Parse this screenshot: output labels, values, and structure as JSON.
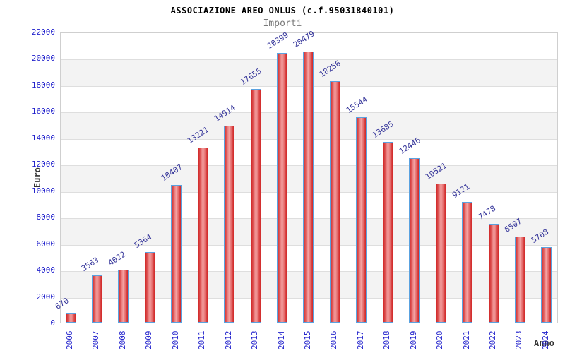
{
  "chart_data": {
    "type": "bar",
    "title": "ASSOCIAZIONE AREO ONLUS (c.f.95031840101)",
    "subtitle": "Importi",
    "xlabel": "Anno",
    "ylabel": "Euro",
    "categories": [
      "2006",
      "2007",
      "2008",
      "2009",
      "2010",
      "2011",
      "2012",
      "2013",
      "2014",
      "2015",
      "2016",
      "2017",
      "2018",
      "2019",
      "2020",
      "2021",
      "2022",
      "2023",
      "2024"
    ],
    "values": [
      670,
      3563,
      4022,
      5364,
      10407,
      13221,
      14914,
      17655,
      20399,
      20479,
      18256,
      15544,
      13685,
      12446,
      10521,
      9121,
      7478,
      6507,
      5708
    ],
    "ylim": [
      0,
      22000
    ],
    "ytick_step": 2000,
    "grid": true,
    "legend_position": "none",
    "colors": {
      "bar_fill": "#d02525",
      "bar_fill_mid": "#f5a5a5",
      "bar_border": "#5aa2e0",
      "tick_label": "#2222cc",
      "value_label": "#333399",
      "band": "#f3f3f3",
      "gridline": "#dedede",
      "subtitle": "#7a7a7a"
    }
  }
}
